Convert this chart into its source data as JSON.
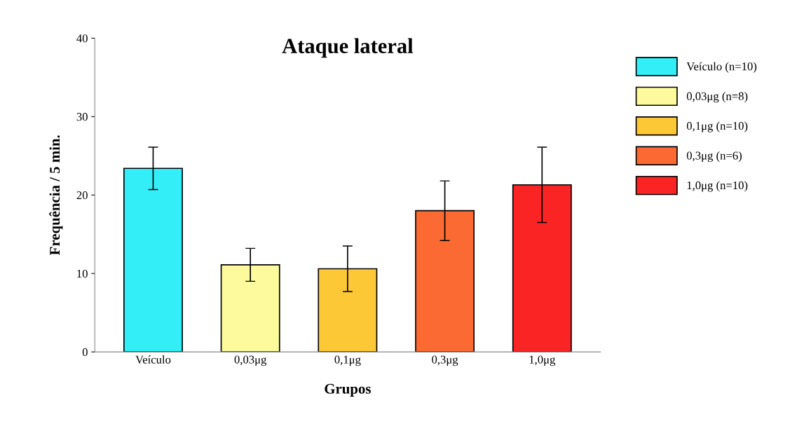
{
  "chart_data": {
    "type": "bar",
    "title": "Ataque lateral",
    "xlabel": "Grupos",
    "ylabel": "Frequência / 5 min.",
    "categories": [
      "Veículo",
      "0,03μg",
      "0,1μg",
      "0,3μg",
      "1,0μg"
    ],
    "series": [
      {
        "name": "Veículo (n=10)",
        "color": "#33eef6",
        "values": [
          23.4,
          null,
          null,
          null,
          null
        ],
        "errors": [
          2.7,
          null,
          null,
          null,
          null
        ]
      },
      {
        "name": "0,03μg (n=8)",
        "color": "#fcfa9c",
        "values": [
          null,
          11.1,
          null,
          null,
          null
        ],
        "errors": [
          null,
          2.1,
          null,
          null,
          null
        ]
      },
      {
        "name": "0,1μg (n=10)",
        "color": "#fcc835",
        "values": [
          null,
          null,
          10.6,
          null,
          null
        ],
        "errors": [
          null,
          null,
          2.9,
          null,
          null
        ]
      },
      {
        "name": "0,3μg (n=6)",
        "color": "#fb6a32",
        "values": [
          null,
          null,
          null,
          18.0,
          null
        ],
        "errors": [
          null,
          null,
          null,
          3.8,
          null
        ]
      },
      {
        "name": "1,0μg (n=10)",
        "color": "#fb2424",
        "values": [
          null,
          null,
          null,
          null,
          21.3
        ],
        "errors": [
          null,
          null,
          null,
          null,
          4.8
        ]
      }
    ],
    "ylim": [
      0,
      40
    ],
    "yticks": [
      0,
      10,
      20,
      30,
      40
    ],
    "grid": false,
    "legend": "right"
  }
}
